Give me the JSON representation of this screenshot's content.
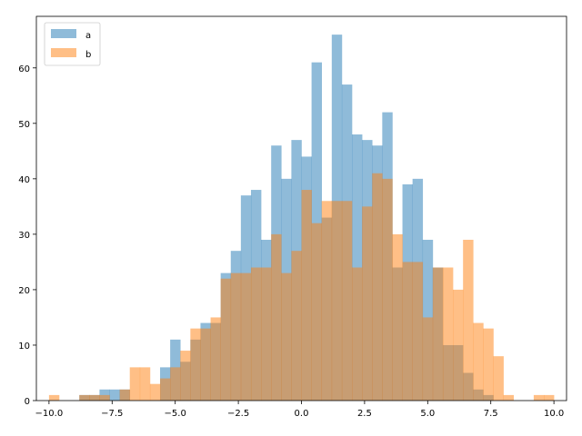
{
  "chart_data": {
    "type": "histogram",
    "title": "",
    "xlabel": "",
    "ylabel": "",
    "bins": {
      "start": -10.0,
      "end": 10.0,
      "count": 50,
      "width": 0.4
    },
    "xlim": [
      -10.5,
      10.5
    ],
    "ylim": [
      0,
      69.3
    ],
    "x_ticks": [
      -10.0,
      -7.5,
      -5.0,
      -2.5,
      0.0,
      2.5,
      5.0,
      7.5,
      10.0
    ],
    "x_tick_labels": [
      "−10.0",
      "−7.5",
      "−5.0",
      "−2.5",
      "0.0",
      "2.5",
      "5.0",
      "7.5",
      "10.0"
    ],
    "y_ticks": [
      0,
      10,
      20,
      30,
      40,
      50,
      60
    ],
    "y_tick_labels": [
      "0",
      "10",
      "20",
      "30",
      "40",
      "50",
      "60"
    ],
    "grid": false,
    "legend_position": "upper-left",
    "alpha": 0.5,
    "series": [
      {
        "name": "a",
        "color": "#1f77b4",
        "values": [
          0,
          0,
          0,
          1,
          1,
          2,
          2,
          2,
          0,
          0,
          0,
          6,
          11,
          7,
          11,
          14,
          14,
          23,
          27,
          37,
          38,
          29,
          46,
          40,
          47,
          44,
          61,
          33,
          66,
          57,
          48,
          47,
          46,
          52,
          24,
          39,
          40,
          29,
          24,
          10,
          10,
          5,
          2,
          1,
          0,
          0,
          0,
          0,
          0,
          0
        ]
      },
      {
        "name": "b",
        "color": "#ff7f0e",
        "values": [
          1,
          0,
          0,
          1,
          1,
          1,
          0,
          2,
          6,
          6,
          3,
          4,
          6,
          9,
          13,
          13,
          15,
          22,
          23,
          23,
          24,
          24,
          30,
          23,
          27,
          38,
          32,
          36,
          36,
          36,
          24,
          35,
          41,
          40,
          30,
          25,
          25,
          15,
          24,
          24,
          20,
          29,
          14,
          13,
          8,
          1,
          0,
          0,
          1,
          1
        ]
      }
    ]
  },
  "legend": {
    "items": [
      {
        "label": "a",
        "color": "#1f77b4"
      },
      {
        "label": "b",
        "color": "#ff7f0e"
      }
    ]
  }
}
